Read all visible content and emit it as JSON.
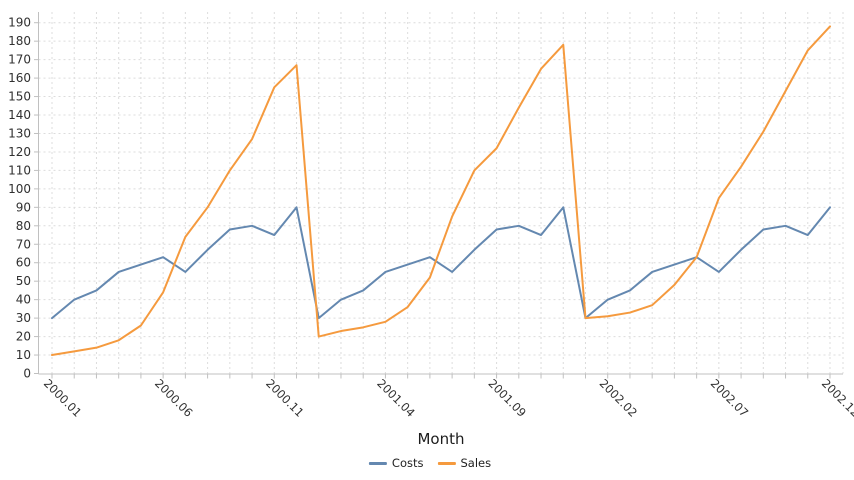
{
  "chart_data": {
    "type": "line",
    "title": "",
    "xlabel": "Month",
    "ylabel": "",
    "grid": "dashed, vertical line per month, horizontal line per 10 units",
    "legend_position": "bottom-center",
    "x_categories": [
      "2000.01",
      "2000.02",
      "2000.03",
      "2000.04",
      "2000.05",
      "2000.06",
      "2000.07",
      "2000.08",
      "2000.09",
      "2000.10",
      "2000.11",
      "2000.12",
      "2001.01",
      "2001.02",
      "2001.03",
      "2001.04",
      "2001.05",
      "2001.06",
      "2001.07",
      "2001.08",
      "2001.09",
      "2001.10",
      "2001.11",
      "2001.12",
      "2002.01",
      "2002.02",
      "2002.03",
      "2002.04",
      "2002.05",
      "2002.06",
      "2002.07",
      "2002.08",
      "2002.09",
      "2002.10",
      "2002.11",
      "2002.12"
    ],
    "x_labeled_ticks": [
      "2000.01",
      "2000.06",
      "2000.11",
      "2001.04",
      "2001.09",
      "2002.02",
      "2002.07",
      "2002.12"
    ],
    "y_axis": {
      "min": 0,
      "max": 190,
      "tick_step": 10
    },
    "ylim": [
      0,
      190
    ],
    "series": [
      {
        "name": "Costs",
        "color": "#6488b0",
        "values": [
          30,
          40,
          45,
          55,
          59,
          63,
          55,
          67,
          78,
          80,
          75,
          90,
          30,
          40,
          45,
          55,
          59,
          63,
          55,
          67,
          78,
          80,
          75,
          90,
          30,
          40,
          45,
          55,
          59,
          63,
          55,
          67,
          78,
          80,
          75,
          90
        ]
      },
      {
        "name": "Sales",
        "color": "#f59a3e",
        "values": [
          10,
          12,
          14,
          18,
          26,
          44,
          74,
          90,
          110,
          127,
          155,
          167,
          20,
          23,
          25,
          28,
          36,
          52,
          85,
          110,
          122,
          144,
          165,
          178,
          30,
          31,
          33,
          37,
          48,
          63,
          95,
          112,
          131,
          153,
          175,
          188
        ]
      }
    ]
  }
}
